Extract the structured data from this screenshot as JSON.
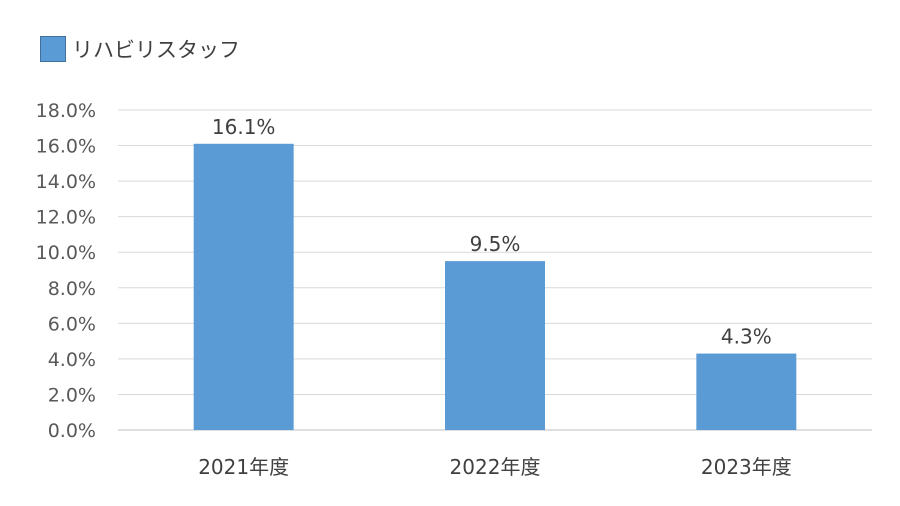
{
  "chart_data": {
    "type": "bar",
    "categories": [
      "2021年度",
      "2022年度",
      "2023年度"
    ],
    "series": [
      {
        "name": "リハビリスタッフ",
        "values": [
          16.1,
          9.5,
          4.3
        ],
        "data_labels": [
          "16.1%",
          "9.5%",
          "4.3%"
        ],
        "color": "#5B9BD5"
      }
    ],
    "ylim": [
      0,
      18
    ],
    "yticks": [
      0,
      2,
      4,
      6,
      8,
      10,
      12,
      14,
      16,
      18
    ],
    "ytick_labels": [
      "0.0%",
      "2.0%",
      "4.0%",
      "6.0%",
      "8.0%",
      "10.0%",
      "12.0%",
      "14.0%",
      "16.0%",
      "18.0%"
    ],
    "grid": true,
    "grid_color": "#D9D9D9",
    "legend_position": "top-left"
  }
}
